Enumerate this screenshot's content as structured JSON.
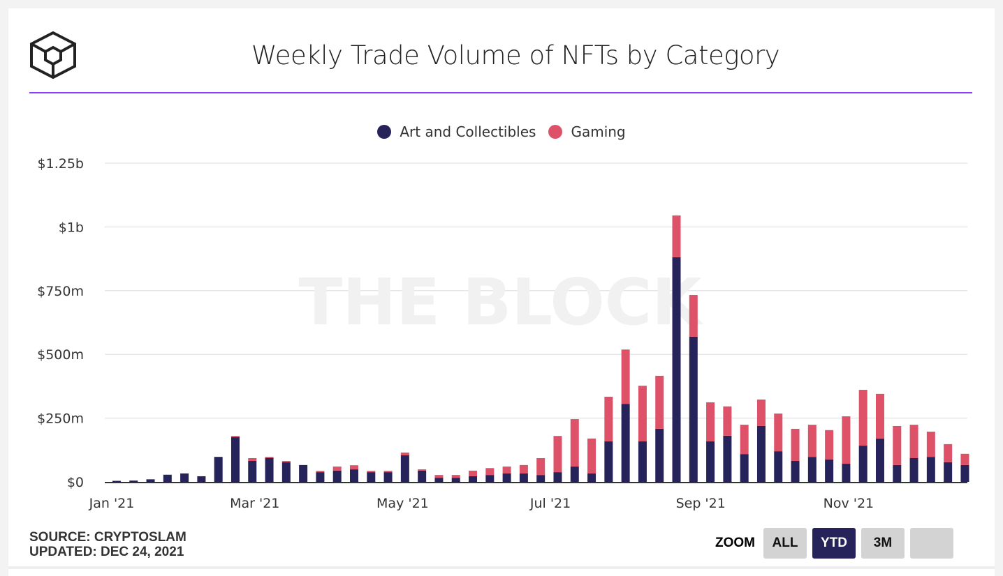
{
  "header": {
    "title": "Weekly Trade Volume of NFTs by Category"
  },
  "footer": {
    "source": "SOURCE: CRYPTOSLAM",
    "updated": "UPDATED: DEC 24, 2021"
  },
  "zoom": {
    "label": "ZOOM",
    "buttons": [
      "ALL",
      "YTD",
      "3M",
      ""
    ],
    "active": "YTD"
  },
  "watermark": "THE BLOCK",
  "colors": {
    "art": "#25235a",
    "gaming": "#dd5269",
    "accent": "#8a3ffc"
  },
  "chart_data": {
    "type": "bar",
    "stacked": true,
    "title": "Weekly Trade Volume of NFTs by Category",
    "legend": "top-center",
    "grid": true,
    "ylim": [
      0,
      1250
    ],
    "yunit": "$m",
    "yticks": [
      0,
      250,
      500,
      750,
      1000,
      1250
    ],
    "ytick_labels": [
      "$0",
      "$250m",
      "$500m",
      "$750m",
      "$1b",
      "$1.25b"
    ],
    "xticks": [
      "2021-01-01",
      "2021-03-01",
      "2021-05-01",
      "2021-07-01",
      "2021-09-01",
      "2021-11-01"
    ],
    "xtick_labels": [
      "Jan '21",
      "Mar '21",
      "May '21",
      "Jul '21",
      "Sep '21",
      "Nov '21"
    ],
    "first_week": "2021-01-03",
    "series": [
      {
        "name": "Art and Collectibles",
        "color": "#25235a",
        "values": [
          3,
          5,
          10,
          28,
          33,
          22,
          98,
          175,
          82,
          93,
          77,
          66,
          38,
          44,
          49,
          38,
          38,
          104,
          44,
          16,
          16,
          22,
          27,
          33,
          33,
          27,
          38,
          60,
          33,
          159,
          306,
          159,
          208,
          881,
          569,
          159,
          181,
          109,
          219,
          120,
          82,
          98,
          88,
          71,
          142,
          170,
          66,
          93,
          98,
          77,
          66
        ]
      },
      {
        "name": "Gaming",
        "color": "#dd5269",
        "values": [
          2,
          0,
          0,
          0,
          0,
          0,
          0,
          5,
          11,
          5,
          5,
          0,
          5,
          16,
          16,
          5,
          5,
          11,
          5,
          11,
          11,
          22,
          27,
          27,
          33,
          66,
          142,
          186,
          137,
          175,
          213,
          218,
          208,
          164,
          164,
          153,
          115,
          115,
          104,
          148,
          126,
          126,
          115,
          186,
          219,
          175,
          153,
          131,
          99,
          71,
          44
        ]
      }
    ]
  }
}
